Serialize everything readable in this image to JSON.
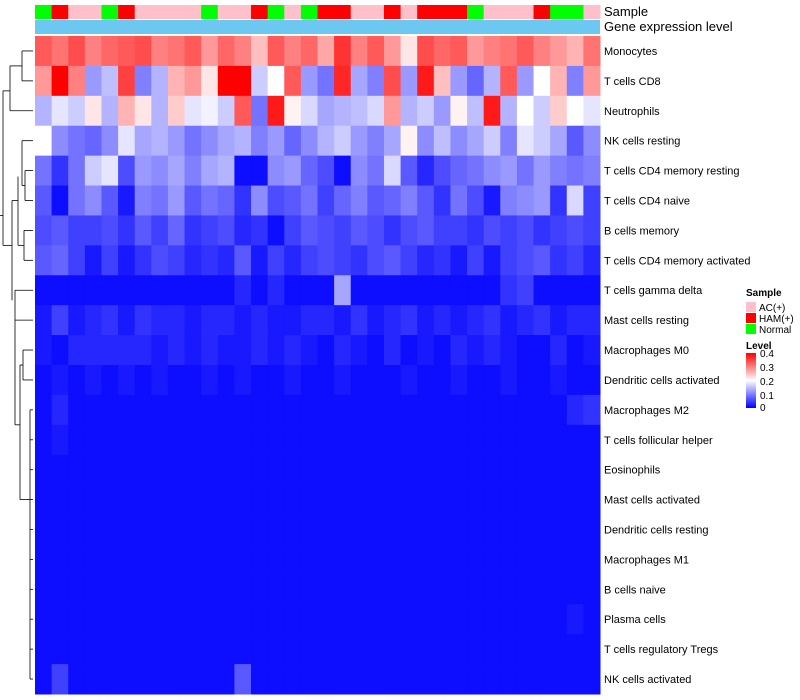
{
  "chart_data": {
    "type": "heatmap",
    "title": "",
    "annotation_labels": [
      "Sample",
      "Gene expression level"
    ],
    "sample_groups": [
      "Normal",
      "HAM(+)",
      "AC(+)",
      "AC(+)",
      "Normal",
      "HAM(+)",
      "AC(+)",
      "AC(+)",
      "AC(+)",
      "AC(+)",
      "Normal",
      "AC(+)",
      "AC(+)",
      "HAM(+)",
      "Normal",
      "AC(+)",
      "Normal",
      "HAM(+)",
      "HAM(+)",
      "AC(+)",
      "AC(+)",
      "HAM(+)",
      "AC(+)",
      "HAM(+)",
      "HAM(+)",
      "HAM(+)",
      "Normal",
      "AC(+)",
      "AC(+)",
      "AC(+)",
      "HAM(+)",
      "Normal",
      "Normal",
      "AC(+)"
    ],
    "rows": [
      "Monocytes",
      "T cells CD8",
      "Neutrophils",
      "NK cells resting",
      "T cells CD4 memory resting",
      "T cells CD4 naive",
      "B cells memory",
      "T cells CD4 memory activated",
      "T cells gamma delta",
      "Mast cells resting",
      "Macrophages M0",
      "Dendritic cells activated",
      "Macrophages M2",
      "T cells follicular helper",
      "Eosinophils",
      "Mast cells activated",
      "Dendritic cells resting",
      "Macrophages M1",
      "B cells naive",
      "Plasma cells",
      "T cells regulatory  Tregs",
      "NK cells activated"
    ],
    "values": [
      [
        0.33,
        0.31,
        0.34,
        0.3,
        0.32,
        0.33,
        0.34,
        0.3,
        0.31,
        0.33,
        0.28,
        0.32,
        0.3,
        0.25,
        0.33,
        0.3,
        0.32,
        0.27,
        0.36,
        0.3,
        0.33,
        0.28,
        0.22,
        0.34,
        0.32,
        0.33,
        0.28,
        0.3,
        0.31,
        0.33,
        0.3,
        0.28,
        0.26,
        0.31
      ],
      [
        0.28,
        0.4,
        0.3,
        0.12,
        0.15,
        0.35,
        0.1,
        0.14,
        0.26,
        0.28,
        0.22,
        0.4,
        0.4,
        0.16,
        0.2,
        0.33,
        0.12,
        0.09,
        0.37,
        0.13,
        0.1,
        0.34,
        0.12,
        0.38,
        0.25,
        0.12,
        0.08,
        0.14,
        0.33,
        0.12,
        0.2,
        0.26,
        0.1,
        0.28
      ],
      [
        0.14,
        0.18,
        0.16,
        0.22,
        0.14,
        0.26,
        0.22,
        0.14,
        0.24,
        0.18,
        0.19,
        0.16,
        0.33,
        0.09,
        0.38,
        0.21,
        0.17,
        0.13,
        0.14,
        0.15,
        0.17,
        0.28,
        0.14,
        0.16,
        0.12,
        0.21,
        0.15,
        0.38,
        0.14,
        0.2,
        0.16,
        0.24,
        0.2,
        0.18
      ],
      [
        0.2,
        0.11,
        0.09,
        0.08,
        0.11,
        0.18,
        0.13,
        0.14,
        0.12,
        0.09,
        0.11,
        0.13,
        0.14,
        0.1,
        0.12,
        0.08,
        0.11,
        0.14,
        0.16,
        0.12,
        0.1,
        0.13,
        0.21,
        0.11,
        0.15,
        0.11,
        0.13,
        0.16,
        0.1,
        0.18,
        0.16,
        0.13,
        0.07,
        0.11
      ],
      [
        0.09,
        0.04,
        0.09,
        0.16,
        0.18,
        0.06,
        0.12,
        0.11,
        0.13,
        0.1,
        0.13,
        0.14,
        0.01,
        0.01,
        0.11,
        0.12,
        0.08,
        0.06,
        0.01,
        0.11,
        0.09,
        0.17,
        0.07,
        0.03,
        0.06,
        0.08,
        0.09,
        0.11,
        0.12,
        0.09,
        0.12,
        0.1,
        0.09,
        0.1
      ],
      [
        0.07,
        0.01,
        0.09,
        0.11,
        0.07,
        0.02,
        0.1,
        0.09,
        0.12,
        0.07,
        0.09,
        0.08,
        0.04,
        0.11,
        0.06,
        0.07,
        0.09,
        0.05,
        0.08,
        0.1,
        0.07,
        0.08,
        0.1,
        0.07,
        0.04,
        0.09,
        0.06,
        0.02,
        0.1,
        0.11,
        0.12,
        0.04,
        0.17,
        0.05
      ],
      [
        0.06,
        0.07,
        0.05,
        0.05,
        0.06,
        0.04,
        0.07,
        0.05,
        0.08,
        0.04,
        0.05,
        0.06,
        0.03,
        0.04,
        0.01,
        0.05,
        0.07,
        0.06,
        0.05,
        0.07,
        0.06,
        0.04,
        0.06,
        0.07,
        0.05,
        0.05,
        0.04,
        0.06,
        0.05,
        0.06,
        0.04,
        0.05,
        0.06,
        0.05
      ],
      [
        0.07,
        0.08,
        0.05,
        0.02,
        0.05,
        0.02,
        0.04,
        0.06,
        0.05,
        0.03,
        0.04,
        0.03,
        0.07,
        0.02,
        0.05,
        0.03,
        0.05,
        0.06,
        0.05,
        0.04,
        0.06,
        0.07,
        0.05,
        0.03,
        0.04,
        0.02,
        0.05,
        0.02,
        0.05,
        0.06,
        0.07,
        0.04,
        0.05,
        0.03
      ],
      [
        0.01,
        0.01,
        0.01,
        0.01,
        0.01,
        0.01,
        0.01,
        0.01,
        0.01,
        0.01,
        0.01,
        0.01,
        0.03,
        0.01,
        0.03,
        0.01,
        0.01,
        0.01,
        0.13,
        0.01,
        0.01,
        0.01,
        0.01,
        0.01,
        0.01,
        0.01,
        0.01,
        0.01,
        0.04,
        0.05,
        0.01,
        0.01,
        0.01,
        0.01
      ],
      [
        0.02,
        0.05,
        0.02,
        0.03,
        0.04,
        0.02,
        0.04,
        0.03,
        0.03,
        0.02,
        0.03,
        0.03,
        0.02,
        0.03,
        0.02,
        0.02,
        0.03,
        0.03,
        0.02,
        0.04,
        0.02,
        0.03,
        0.04,
        0.02,
        0.03,
        0.02,
        0.03,
        0.04,
        0.02,
        0.03,
        0.04,
        0.02,
        0.03,
        0.03
      ],
      [
        0.02,
        0.01,
        0.03,
        0.03,
        0.03,
        0.03,
        0.03,
        0.02,
        0.03,
        0.02,
        0.03,
        0.02,
        0.02,
        0.03,
        0.02,
        0.03,
        0.02,
        0.01,
        0.03,
        0.02,
        0.01,
        0.03,
        0.01,
        0.02,
        0.01,
        0.03,
        0.02,
        0.03,
        0.02,
        0.01,
        0.01,
        0.03,
        0.01,
        0.02
      ],
      [
        0.01,
        0.02,
        0.01,
        0.02,
        0.01,
        0.02,
        0.01,
        0.02,
        0.01,
        0.01,
        0.02,
        0.01,
        0.02,
        0.01,
        0.01,
        0.02,
        0.01,
        0.01,
        0.02,
        0.01,
        0.01,
        0.01,
        0.02,
        0.01,
        0.01,
        0.02,
        0.01,
        0.01,
        0.02,
        0.01,
        0.01,
        0.02,
        0.01,
        0.01
      ],
      [
        0.01,
        0.03,
        0.01,
        0.01,
        0.01,
        0.01,
        0.01,
        0.01,
        0.01,
        0.01,
        0.01,
        0.01,
        0.01,
        0.01,
        0.01,
        0.01,
        0.01,
        0.01,
        0.01,
        0.01,
        0.01,
        0.01,
        0.01,
        0.01,
        0.01,
        0.01,
        0.01,
        0.01,
        0.01,
        0.01,
        0.01,
        0.01,
        0.03,
        0.04
      ],
      [
        0.01,
        0.02,
        0.01,
        0.01,
        0.01,
        0.01,
        0.01,
        0.01,
        0.01,
        0.01,
        0.01,
        0.01,
        0.01,
        0.01,
        0.01,
        0.01,
        0.01,
        0.01,
        0.01,
        0.01,
        0.01,
        0.01,
        0.01,
        0.01,
        0.01,
        0.01,
        0.01,
        0.01,
        0.01,
        0.01,
        0.01,
        0.01,
        0.01,
        0.01
      ],
      [
        0.01,
        0.01,
        0.01,
        0.01,
        0.01,
        0.01,
        0.01,
        0.01,
        0.01,
        0.01,
        0.01,
        0.01,
        0.01,
        0.01,
        0.01,
        0.01,
        0.01,
        0.01,
        0.01,
        0.01,
        0.01,
        0.01,
        0.01,
        0.01,
        0.01,
        0.01,
        0.01,
        0.01,
        0.01,
        0.01,
        0.01,
        0.01,
        0.01,
        0.01
      ],
      [
        0.01,
        0.01,
        0.01,
        0.01,
        0.01,
        0.01,
        0.01,
        0.01,
        0.01,
        0.01,
        0.01,
        0.01,
        0.01,
        0.01,
        0.01,
        0.01,
        0.01,
        0.01,
        0.01,
        0.01,
        0.01,
        0.01,
        0.01,
        0.01,
        0.01,
        0.01,
        0.01,
        0.01,
        0.01,
        0.01,
        0.01,
        0.01,
        0.01,
        0.01
      ],
      [
        0.01,
        0.01,
        0.01,
        0.01,
        0.01,
        0.01,
        0.01,
        0.01,
        0.01,
        0.01,
        0.01,
        0.01,
        0.01,
        0.01,
        0.01,
        0.01,
        0.01,
        0.01,
        0.01,
        0.01,
        0.01,
        0.01,
        0.01,
        0.01,
        0.01,
        0.01,
        0.01,
        0.01,
        0.01,
        0.01,
        0.01,
        0.01,
        0.01,
        0.01
      ],
      [
        0.01,
        0.01,
        0.01,
        0.01,
        0.01,
        0.01,
        0.01,
        0.01,
        0.01,
        0.01,
        0.01,
        0.01,
        0.01,
        0.01,
        0.01,
        0.01,
        0.01,
        0.01,
        0.01,
        0.01,
        0.01,
        0.01,
        0.01,
        0.01,
        0.01,
        0.01,
        0.01,
        0.01,
        0.01,
        0.01,
        0.01,
        0.01,
        0.01,
        0.01
      ],
      [
        0.01,
        0.01,
        0.01,
        0.01,
        0.01,
        0.01,
        0.01,
        0.01,
        0.01,
        0.01,
        0.01,
        0.01,
        0.01,
        0.01,
        0.01,
        0.01,
        0.01,
        0.01,
        0.01,
        0.01,
        0.01,
        0.01,
        0.01,
        0.01,
        0.01,
        0.01,
        0.01,
        0.01,
        0.01,
        0.01,
        0.01,
        0.01,
        0.01,
        0.01
      ],
      [
        0.01,
        0.01,
        0.01,
        0.01,
        0.01,
        0.01,
        0.01,
        0.01,
        0.01,
        0.01,
        0.01,
        0.01,
        0.01,
        0.01,
        0.01,
        0.01,
        0.01,
        0.01,
        0.01,
        0.01,
        0.01,
        0.01,
        0.01,
        0.01,
        0.01,
        0.01,
        0.01,
        0.01,
        0.01,
        0.01,
        0.01,
        0.01,
        0.02,
        0.01
      ],
      [
        0.01,
        0.01,
        0.01,
        0.01,
        0.01,
        0.01,
        0.01,
        0.01,
        0.01,
        0.01,
        0.01,
        0.01,
        0.01,
        0.01,
        0.01,
        0.01,
        0.01,
        0.01,
        0.01,
        0.01,
        0.01,
        0.01,
        0.01,
        0.01,
        0.01,
        0.01,
        0.01,
        0.01,
        0.01,
        0.01,
        0.01,
        0.01,
        0.01,
        0.01
      ],
      [
        0.01,
        0.05,
        0.01,
        0.01,
        0.01,
        0.01,
        0.01,
        0.01,
        0.01,
        0.01,
        0.01,
        0.01,
        0.07,
        0.01,
        0.01,
        0.01,
        0.01,
        0.01,
        0.01,
        0.01,
        0.01,
        0.01,
        0.01,
        0.01,
        0.01,
        0.01,
        0.01,
        0.01,
        0.01,
        0.01,
        0.01,
        0.01,
        0.01,
        0.01
      ]
    ],
    "legend_sample": {
      "title": "Sample",
      "items": [
        {
          "label": "AC(+)",
          "color": "#FFC0CB"
        },
        {
          "label": "HAM(+)",
          "color": "#FF0000"
        },
        {
          "label": "Normal",
          "color": "#00FF00"
        }
      ]
    },
    "legend_level": {
      "title": "Level",
      "ticks": [
        "0.4",
        "0.3",
        "0.2",
        "0.1",
        "0"
      ],
      "range": [
        0,
        0.4
      ],
      "colors": {
        "low": "#0000FF",
        "mid": "#FFFFFF",
        "high": "#FF0000"
      }
    },
    "gene_expression_color": "#6CC8F0",
    "legend_placement": "right"
  }
}
